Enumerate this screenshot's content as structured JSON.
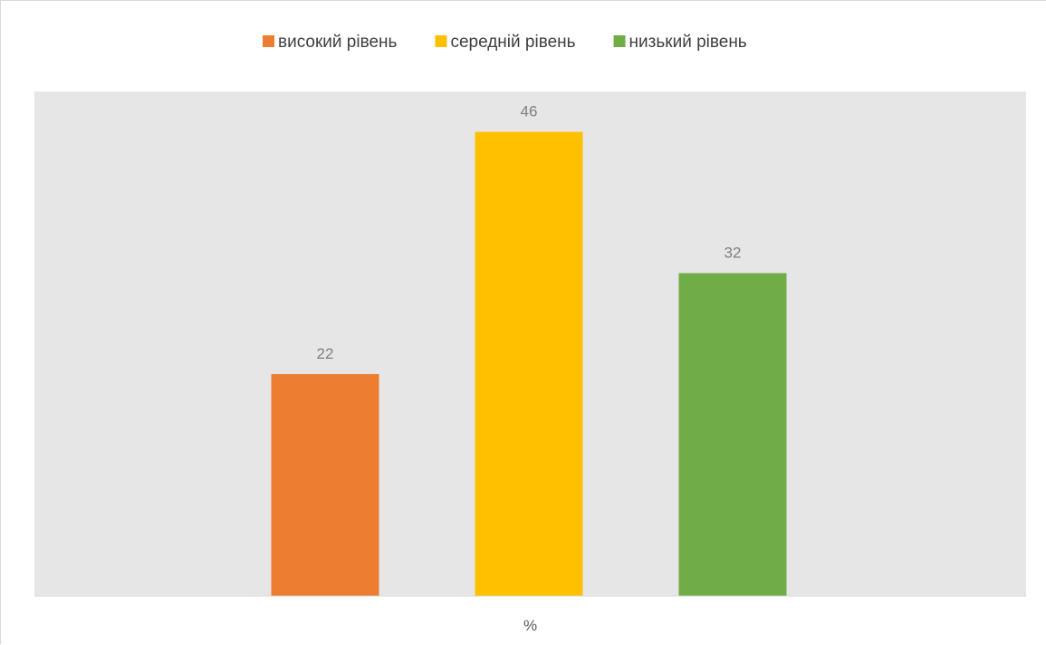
{
  "chart_data": {
    "type": "bar",
    "categories": [
      "%"
    ],
    "series": [
      {
        "name": "високий рівень",
        "values": [
          22
        ],
        "color": "#ED7D31"
      },
      {
        "name": "середній рівень",
        "values": [
          46
        ],
        "color": "#FFC000"
      },
      {
        "name": "низький рівень",
        "values": [
          32
        ],
        "color": "#70AD47"
      }
    ],
    "ylim": [
      0,
      50
    ],
    "xlabel": "",
    "ylabel": "",
    "legend_position": "top",
    "plot_background": "#E6E6E6",
    "grid": false,
    "data_labels": true
  }
}
